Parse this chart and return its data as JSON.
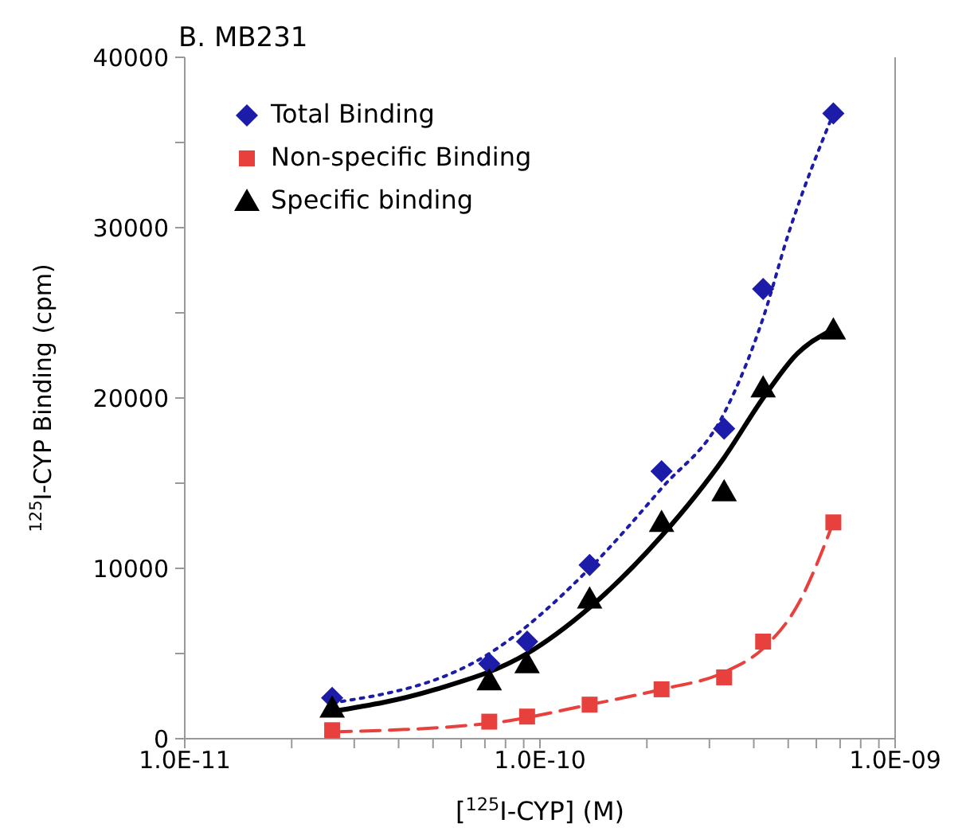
{
  "chart_data": {
    "type": "scatter",
    "title": "B. MB231",
    "xlabel": "[$^{125}$I-CYP] (M)",
    "ylabel": "$^{125}$I-CYP Binding  (cpm)",
    "log": "x",
    "grid": false,
    "legend": "top left",
    "xlim": [
      1e-11,
      1e-09
    ],
    "xticks": [
      {
        "value": 1e-11,
        "label": "1.0E-11"
      },
      {
        "value": 2e-11,
        "label": null
      },
      {
        "value": 3e-11,
        "label": null
      },
      {
        "value": 4e-11,
        "label": null
      },
      {
        "value": 5e-11,
        "label": null
      },
      {
        "value": 6e-11,
        "label": null
      },
      {
        "value": 7e-11,
        "label": null
      },
      {
        "value": 8e-11,
        "label": null
      },
      {
        "value": 9e-11,
        "label": null
      },
      {
        "value": 1e-10,
        "label": "1.0E-10"
      },
      {
        "value": 2e-10,
        "label": null
      },
      {
        "value": 3e-10,
        "label": null
      },
      {
        "value": 4e-10,
        "label": null
      },
      {
        "value": 5e-10,
        "label": null
      },
      {
        "value": 6e-10,
        "label": null
      },
      {
        "value": 7e-10,
        "label": null
      },
      {
        "value": 8e-10,
        "label": null
      },
      {
        "value": 9e-10,
        "label": null
      },
      {
        "value": 1e-09,
        "label": "1.0E-09"
      }
    ],
    "ylim": [
      0,
      40000
    ],
    "yticks": [
      0,
      {
        "value": 5000,
        "label": null
      },
      10000,
      {
        "value": 15000,
        "label": null
      },
      20000,
      {
        "value": 25000,
        "label": null
      },
      30000,
      {
        "value": 35000,
        "label": null
      },
      40000
    ],
    "series": [
      {
        "name": "Total Binding",
        "marker": "diamond",
        "color": "#1c1ca8",
        "x": [
          2.6e-11,
          7.2e-11,
          9.2e-11,
          1.38e-10,
          2.2e-10,
          3.3e-10,
          4.25e-10,
          6.7e-10
        ],
        "values": [
          2400,
          4400,
          5700,
          10200,
          15700,
          18200,
          26400,
          36700
        ]
      },
      {
        "name": "Non-specific Binding",
        "marker": "square",
        "color": "#e8403c",
        "x": [
          2.6e-11,
          7.2e-11,
          9.2e-11,
          1.38e-10,
          2.2e-10,
          3.3e-10,
          4.25e-10,
          6.7e-10
        ],
        "values": [
          500,
          1000,
          1300,
          2000,
          2900,
          3600,
          5700,
          12700
        ]
      },
      {
        "name": "Specific binding",
        "marker": "triangle",
        "color": "#000000",
        "x": [
          2.6e-11,
          7.2e-11,
          9.2e-11,
          1.38e-10,
          2.2e-10,
          3.3e-10,
          4.25e-10,
          6.7e-10
        ],
        "values": [
          1800,
          3400,
          4400,
          8200,
          12700,
          14500,
          20600,
          24000
        ]
      },
      {
        "type": "line",
        "marker": "none",
        "line_style": "dotted",
        "color": "#1c1ca8",
        "x": [
          2.6e-11,
          7.2e-11,
          1.38e-10,
          2.2e-10,
          3.3e-10,
          4.25e-10,
          5e-10,
          6.7e-10
        ],
        "values": [
          2100,
          5000,
          10000,
          14700,
          19100,
          24700,
          29600,
          36700
        ]
      },
      {
        "type": "line",
        "marker": "none",
        "line_style": "dashed",
        "color": "#e8403c",
        "x": [
          2.6e-11,
          7.2e-11,
          1.38e-10,
          2.2e-10,
          3.3e-10,
          4.25e-10,
          5.3e-10,
          6.7e-10
        ],
        "values": [
          400,
          900,
          2000,
          2900,
          3900,
          5300,
          7800,
          12700
        ]
      },
      {
        "type": "line",
        "marker": "none",
        "line_style": "solid",
        "color": "#000000",
        "x": [
          2.6e-11,
          5.1e-11,
          9.2e-11,
          1.38e-10,
          2.2e-10,
          3.3e-10,
          4.25e-10,
          5.3e-10,
          6.5e-10
        ],
        "values": [
          1600,
          2900,
          5000,
          7700,
          11900,
          16500,
          20000,
          22600,
          23900
        ]
      }
    ]
  }
}
